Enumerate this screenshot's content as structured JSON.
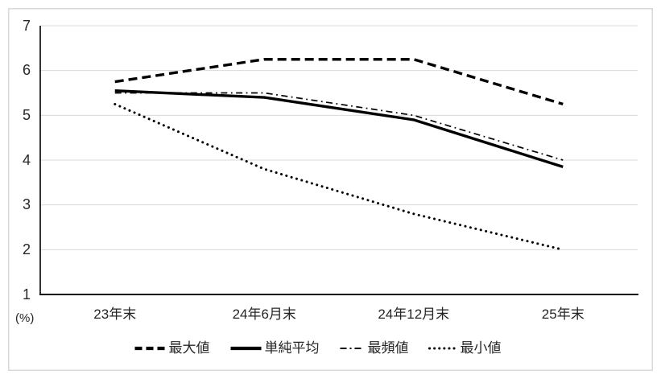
{
  "figure": {
    "background": "#ffffff",
    "frame_border_color": "#d9d9d9",
    "axis_color": "#000000",
    "text_color": "#262626"
  },
  "chart_data": {
    "type": "line",
    "title": "",
    "categories": [
      "23年末",
      "24年6月末",
      "24年12月末",
      "25年末"
    ],
    "series": [
      {
        "name": "最大値",
        "line_style": "dashed",
        "color": "#000000",
        "values": [
          5.75,
          6.25,
          6.25,
          5.25
        ]
      },
      {
        "name": "単純平均",
        "line_style": "solid",
        "color": "#000000",
        "values": [
          5.55,
          5.4,
          4.9,
          3.85
        ]
      },
      {
        "name": "最頻値",
        "line_style": "dash-dot",
        "color": "#000000",
        "values": [
          5.5,
          5.5,
          5.0,
          4.0
        ]
      },
      {
        "name": "最小値",
        "line_style": "dotted",
        "color": "#000000",
        "values": [
          5.25,
          3.8,
          2.8,
          2.0
        ]
      }
    ],
    "y_axis": {
      "min": 1,
      "max": 7,
      "step": 1,
      "ticks": [
        7,
        6,
        5,
        4,
        3,
        2,
        1
      ],
      "unit_label": "(%)"
    },
    "x_axis": {
      "label": ""
    },
    "grid": {
      "horizontal": true,
      "vertical": false,
      "color": "#d9d9d9"
    },
    "legend": {
      "position": "bottom",
      "entries": [
        "最大値",
        "単純平均",
        "最頻値",
        "最小値"
      ]
    }
  }
}
